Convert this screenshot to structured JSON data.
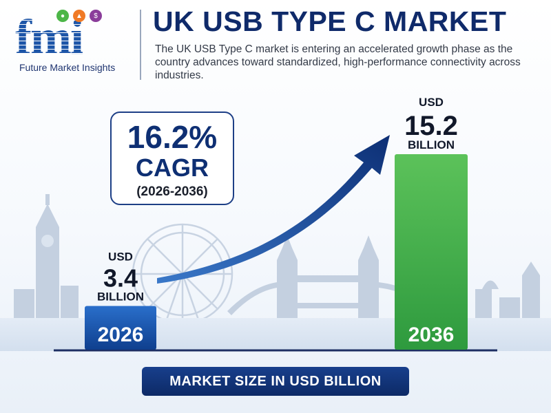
{
  "brand": {
    "name": "Future Market Insights",
    "logo_text": "fmi"
  },
  "header": {
    "title": "UK USB TYPE C MARKET",
    "subtitle": "The UK USB Type C market is entering an accelerated growth phase as the country advances toward standardized, high-performance connectivity across industries."
  },
  "cagr": {
    "value": "16.2%",
    "label": "CAGR",
    "period": "(2026-2036)"
  },
  "chart_data": {
    "type": "bar",
    "categories": [
      "2026",
      "2036"
    ],
    "values": [
      3.4,
      15.2
    ],
    "value_labels": [
      {
        "unit": "USD",
        "value": "3.4",
        "scale": "BILLION"
      },
      {
        "unit": "USD",
        "value": "15.2",
        "scale": "BILLION"
      }
    ],
    "xlabel": "MARKET SIZE IN USD BILLION",
    "ylim": [
      0,
      15.2
    ],
    "grid": false,
    "colors": [
      "#1a5bb5",
      "#3fae49"
    ]
  },
  "colors": {
    "brand_blue": "#1e56a8",
    "navy": "#0f2a6a",
    "arrow": "#153f8f",
    "bar_2026": "#1a5bb5",
    "bar_2036": "#3fae49"
  }
}
